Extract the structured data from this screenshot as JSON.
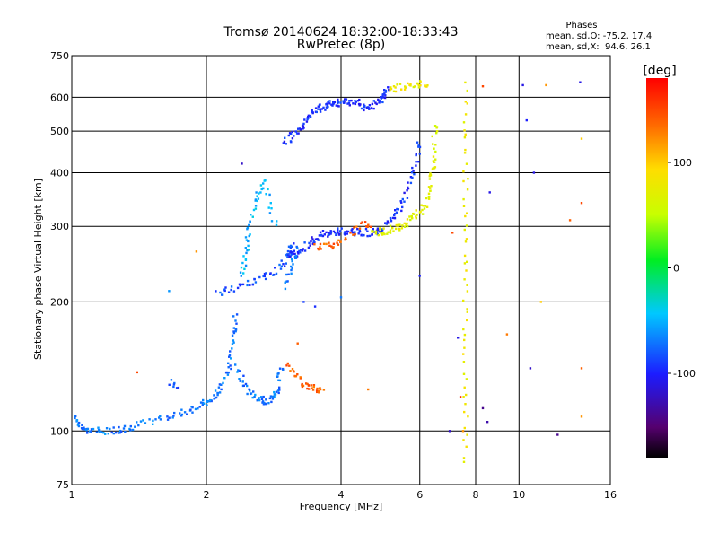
{
  "chart_data": {
    "type": "scatter",
    "title": "Tromsø 20140624 18:32:00-18:33:43",
    "subtitle": "RwPretec (8p)",
    "xlabel": "Frequency [MHz]",
    "ylabel": "Stationary phase Virtual Height [km]",
    "x_scale": "log",
    "y_scale": "log",
    "xlim": [
      1,
      16
    ],
    "ylim": [
      75,
      750
    ],
    "x_ticks": [
      1,
      2,
      4,
      6,
      8,
      10,
      16
    ],
    "x_tick_labels": [
      "1",
      "2",
      "4",
      "6",
      "8",
      "10",
      "16"
    ],
    "y_ticks": [
      75,
      100,
      200,
      300,
      400,
      500,
      600,
      750
    ],
    "y_tick_labels": [
      "75",
      "100",
      "200",
      "300",
      "400",
      "500",
      "600",
      "750"
    ],
    "grid": true,
    "phases_title": "Phases",
    "phases_o": "mean, sd,O: -75.2, 17.4",
    "phases_x": "mean, sd,X:  94.6, 26.1",
    "colorbar": {
      "label": "[deg]",
      "range": [
        -180,
        180
      ],
      "ticks": [
        100,
        0,
        -100
      ],
      "tick_labels": [
        "100",
        "0",
        "-100"
      ]
    },
    "segments": [
      {
        "x": [
          1.02,
          1.05,
          1.1,
          1.2,
          1.3,
          1.4,
          1.6,
          1.8,
          1.95,
          2.05,
          2.15,
          2.25,
          2.3,
          2.33
        ],
        "y": [
          108,
          102,
          100,
          100,
          101,
          103,
          107,
          111,
          115,
          118,
          125,
          140,
          165,
          185
        ],
        "phase": -70,
        "n": 140
      },
      {
        "x": [
          1.65,
          1.7,
          1.75
        ],
        "y": [
          130,
          127,
          126
        ],
        "phase": -85,
        "n": 8
      },
      {
        "x": [
          2.35,
          2.5,
          2.7,
          2.85,
          2.95
        ],
        "y": [
          140,
          122,
          117,
          120,
          142
        ],
        "phase": -70,
        "n": 60
      },
      {
        "x": [
          3.05,
          3.15,
          3.3,
          3.45,
          3.55,
          3.62
        ],
        "y": [
          145,
          135,
          128,
          126,
          125,
          125
        ],
        "phase": 140,
        "n": 40
      },
      {
        "x": [
          2.1,
          2.3,
          2.5,
          2.7,
          2.9,
          3.05,
          3.12
        ],
        "y": [
          210,
          214,
          220,
          228,
          240,
          255,
          275
        ],
        "phase": -85,
        "n": 55
      },
      {
        "x": [
          2.4,
          2.45,
          2.5,
          2.6,
          2.7,
          2.85
        ],
        "y": [
          230,
          260,
          300,
          350,
          380,
          300
        ],
        "phase": -50,
        "n": 55
      },
      {
        "x": [
          3.05,
          3.2,
          3.4,
          3.6,
          3.8,
          4.0,
          4.3,
          4.6,
          4.9,
          5.2,
          5.5,
          5.8,
          6.0
        ],
        "y": [
          255,
          260,
          275,
          285,
          290,
          292,
          290,
          290,
          295,
          310,
          340,
          400,
          470
        ],
        "phase": -95,
        "n": 150
      },
      {
        "x": [
          3.5,
          3.7,
          3.9,
          4.1,
          4.4,
          4.7
        ],
        "y": [
          270,
          268,
          272,
          285,
          300,
          305
        ],
        "phase": 140,
        "n": 35
      },
      {
        "x": [
          4.7,
          5.0,
          5.3,
          5.6,
          5.9,
          6.2,
          6.35,
          6.45,
          6.5
        ],
        "y": [
          290,
          292,
          298,
          305,
          318,
          340,
          380,
          430,
          520
        ],
        "phase": 70,
        "n": 90
      },
      {
        "x": [
          3.0,
          3.2,
          3.4,
          3.6,
          3.8,
          4.0,
          4.3,
          4.6,
          4.9,
          5.1
        ],
        "y": [
          470,
          500,
          540,
          565,
          580,
          582,
          585,
          560,
          590,
          625
        ],
        "phase": -95,
        "n": 130
      },
      {
        "x": [
          5.1,
          5.4,
          5.7,
          6.0,
          6.2
        ],
        "y": [
          620,
          632,
          640,
          645,
          640
        ],
        "phase": 80,
        "n": 30
      },
      {
        "x": [
          7.6,
          7.6
        ],
        "y": [
          85,
          640
        ],
        "phase": 80,
        "n": 55
      },
      {
        "x": [
          3.0,
          3.1,
          3.2
        ],
        "y": [
          218,
          240,
          265
        ],
        "phase": -70,
        "n": 18
      }
    ],
    "scatter_points": [
      {
        "x": 1.4,
        "y": 137,
        "phase": 150
      },
      {
        "x": 1.9,
        "y": 262,
        "phase": 120
      },
      {
        "x": 1.65,
        "y": 212,
        "phase": -60
      },
      {
        "x": 2.4,
        "y": 420,
        "phase": -120
      },
      {
        "x": 3.2,
        "y": 160,
        "phase": 140
      },
      {
        "x": 3.3,
        "y": 200,
        "phase": -90
      },
      {
        "x": 3.5,
        "y": 195,
        "phase": -95
      },
      {
        "x": 4.0,
        "y": 205,
        "phase": -70
      },
      {
        "x": 4.6,
        "y": 125,
        "phase": 130
      },
      {
        "x": 6.0,
        "y": 230,
        "phase": -100
      },
      {
        "x": 7.0,
        "y": 100,
        "phase": -120
      },
      {
        "x": 7.1,
        "y": 290,
        "phase": 150
      },
      {
        "x": 7.3,
        "y": 165,
        "phase": -110
      },
      {
        "x": 7.4,
        "y": 120,
        "phase": 160
      },
      {
        "x": 7.5,
        "y": 100,
        "phase": 120
      },
      {
        "x": 8.3,
        "y": 113,
        "phase": -140
      },
      {
        "x": 8.3,
        "y": 636,
        "phase": 150
      },
      {
        "x": 8.5,
        "y": 105,
        "phase": -130
      },
      {
        "x": 8.6,
        "y": 360,
        "phase": -110
      },
      {
        "x": 9.4,
        "y": 168,
        "phase": 130
      },
      {
        "x": 10.2,
        "y": 640,
        "phase": -110
      },
      {
        "x": 10.4,
        "y": 530,
        "phase": -100
      },
      {
        "x": 10.6,
        "y": 140,
        "phase": -120
      },
      {
        "x": 10.8,
        "y": 400,
        "phase": -110
      },
      {
        "x": 11.2,
        "y": 200,
        "phase": 100
      },
      {
        "x": 11.5,
        "y": 640,
        "phase": 120
      },
      {
        "x": 12.2,
        "y": 98,
        "phase": -140
      },
      {
        "x": 13.0,
        "y": 310,
        "phase": 140
      },
      {
        "x": 13.7,
        "y": 650,
        "phase": -110
      },
      {
        "x": 13.8,
        "y": 140,
        "phase": 140
      },
      {
        "x": 13.8,
        "y": 340,
        "phase": 150
      },
      {
        "x": 13.8,
        "y": 480,
        "phase": 100
      },
      {
        "x": 13.8,
        "y": 108,
        "phase": 120
      }
    ]
  }
}
